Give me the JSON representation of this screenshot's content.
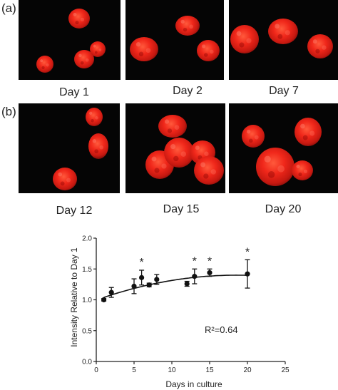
{
  "panels": {
    "a_label": "(a)",
    "b_label": "(b)"
  },
  "micrographs": [
    {
      "label": "Day 1"
    },
    {
      "label": "Day 2"
    },
    {
      "label": "Day 7"
    },
    {
      "label": "Day 12"
    },
    {
      "label": "Day 15"
    },
    {
      "label": "Day 20"
    }
  ],
  "chart_data": {
    "type": "scatter",
    "xlabel": "Days in culture",
    "ylabel": "Intensity Relative to Day 1",
    "xlim": [
      0,
      25
    ],
    "ylim": [
      0.0,
      2.0
    ],
    "xticks": [
      "0",
      "5",
      "10",
      "15",
      "20",
      "25"
    ],
    "yticks": [
      "0.0",
      "0.5",
      "1.0",
      "1.5",
      "2.0"
    ],
    "points": [
      {
        "x": 1,
        "y": 1.0,
        "err": 0.02,
        "sig": false
      },
      {
        "x": 2,
        "y": 1.12,
        "err": 0.08,
        "sig": false
      },
      {
        "x": 5,
        "y": 1.22,
        "err": 0.12,
        "sig": false
      },
      {
        "x": 6,
        "y": 1.36,
        "err": 0.12,
        "sig": true
      },
      {
        "x": 7,
        "y": 1.24,
        "err": 0.03,
        "sig": false
      },
      {
        "x": 8,
        "y": 1.33,
        "err": 0.08,
        "sig": false
      },
      {
        "x": 12,
        "y": 1.26,
        "err": 0.04,
        "sig": false
      },
      {
        "x": 13,
        "y": 1.38,
        "err": 0.12,
        "sig": true
      },
      {
        "x": 15,
        "y": 1.44,
        "err": 0.06,
        "sig": true
      },
      {
        "x": 20,
        "y": 1.42,
        "err": 0.23,
        "sig": true
      }
    ],
    "sig_marker": "*",
    "fit": "quadratic",
    "fit_coefficients": [
      0.997,
      0.0434,
      -0.00117
    ],
    "annotation": "R²=0.64",
    "grid": false
  }
}
